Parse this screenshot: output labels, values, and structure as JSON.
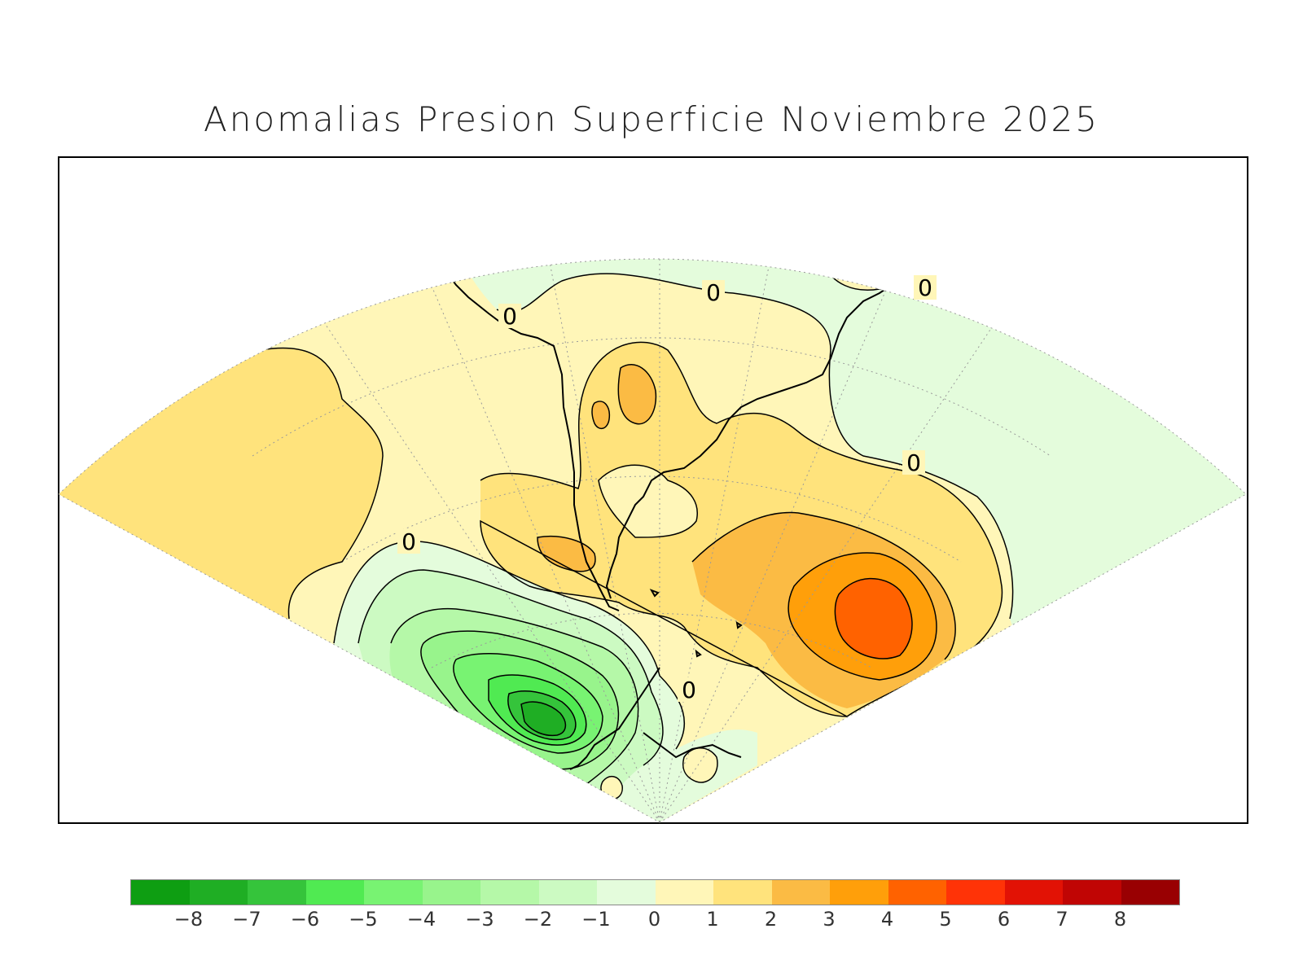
{
  "title": "Anomalias Presion Superficie Noviembre 2025",
  "contour_labels": [
    "0",
    "0",
    "0",
    "0",
    "0",
    "0"
  ],
  "colorbar": {
    "colors": [
      "#0e9e12",
      "#1fae24",
      "#35c43b",
      "#50ea52",
      "#78f372",
      "#98f48c",
      "#b5f8a8",
      "#ccfac2",
      "#e4fcdc",
      "#fff6b8",
      "#ffe37c",
      "#fbbb44",
      "#ff9f0a",
      "#ff6200",
      "#ff3307",
      "#e21205",
      "#c00504",
      "#990002"
    ],
    "ticks": [
      "−8",
      "−7",
      "−6",
      "−5",
      "−4",
      "−3",
      "−2",
      "−1",
      "0",
      "1",
      "2",
      "3",
      "4",
      "5",
      "6",
      "7",
      "8"
    ]
  },
  "palette": {
    "neutral_neg": "#e4fcdc",
    "neutral_pos": "#fff6b8",
    "pos1": "#ffe37c",
    "pos2": "#fbbb44",
    "pos3": "#ff9f0a",
    "pos4": "#ff6200"
  }
}
